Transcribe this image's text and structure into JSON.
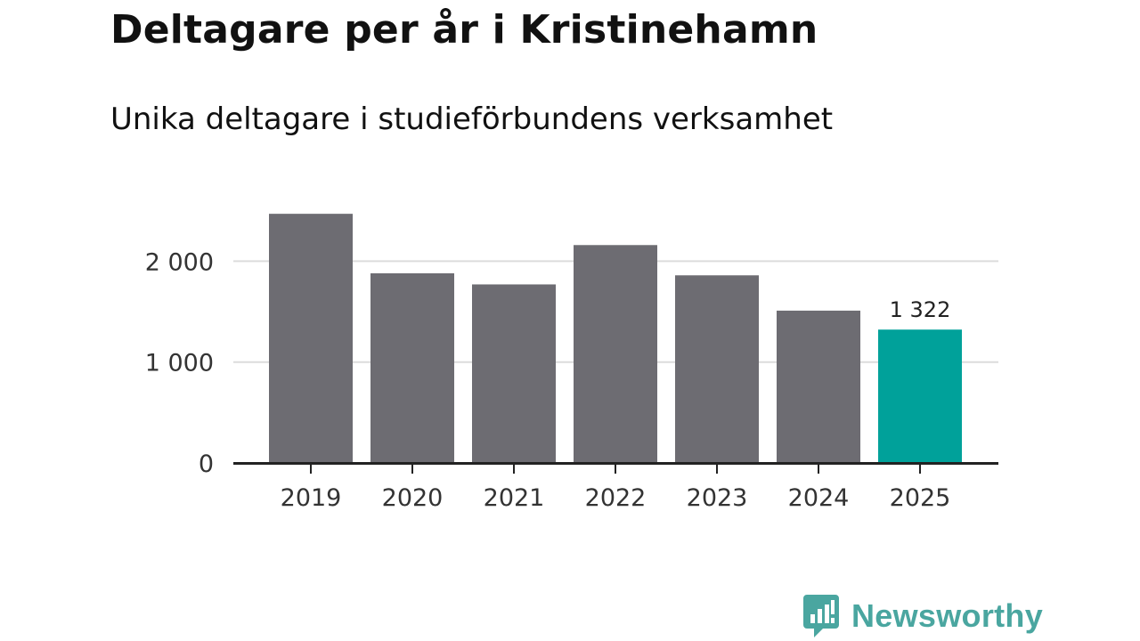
{
  "chart_data": {
    "type": "bar",
    "title": "Deltagare per år i Kristinehamn",
    "subtitle": "Unika deltagare i studieförbundens verksamhet",
    "xlabel": "",
    "ylabel": "",
    "categories": [
      "2019",
      "2020",
      "2021",
      "2022",
      "2023",
      "2024",
      "2025"
    ],
    "values": [
      2470,
      1880,
      1770,
      2160,
      1860,
      1510,
      1322
    ],
    "ylim": [
      0,
      2500
    ],
    "yticks": [
      0,
      1000,
      2000
    ],
    "ytick_labels": [
      "0",
      "1 000",
      "2 000"
    ],
    "grid": true,
    "bar_color": "#6d6c72",
    "highlight_index": 6,
    "highlight_color": "#00a19a",
    "highlight_label": "1 322"
  },
  "brand": {
    "name": "Newsworthy",
    "icon": "newsworthy-logo-icon",
    "color": "#4aa6a0"
  }
}
